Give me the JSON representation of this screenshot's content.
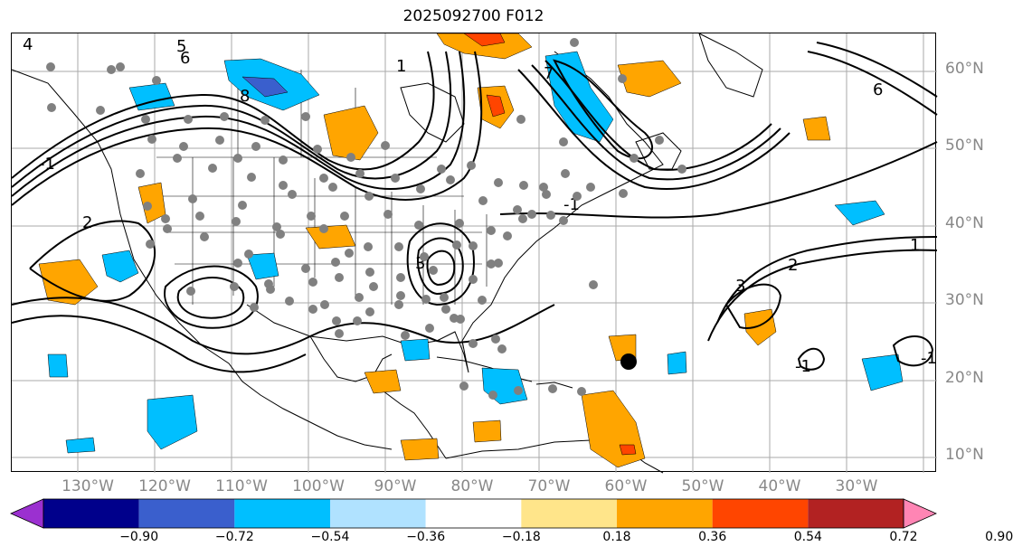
{
  "title": "2025092700 F012",
  "lat_labels": [
    "60°N",
    "50°N",
    "40°N",
    "30°N",
    "20°N",
    "10°N"
  ],
  "lon_labels": [
    "130°W",
    "120°W",
    "110°W",
    "100°W",
    "90°W",
    "80°W",
    "70°W",
    "60°W",
    "50°W",
    "40°W",
    "30°W"
  ],
  "contour_labels": [
    "5",
    "6",
    "4",
    "1",
    "-1",
    "2",
    "3",
    "7",
    "8"
  ],
  "colorbar": {
    "ticks": [
      "−0.90",
      "−0.72",
      "−0.54",
      "−0.36",
      "−0.18",
      "0.18",
      "0.36",
      "0.54",
      "0.72",
      "0.90"
    ],
    "colors": [
      "#9b30d0",
      "#00008b",
      "#3a5fcd",
      "#00bfff",
      "#b0e2ff",
      "#ffffff",
      "#ffe58a",
      "#ffa500",
      "#ff4500",
      "#b22222",
      "#ff85b4"
    ],
    "extend": "both"
  },
  "colors": {
    "positive_light": "#ffe58a",
    "positive": "#ffa500",
    "positive_strong": "#ff4500",
    "negative_light": "#b0e2ff",
    "negative": "#00bfff",
    "negative_strong": "#3a5fcd",
    "stations": "#808080",
    "storm_center": "#000000"
  }
}
